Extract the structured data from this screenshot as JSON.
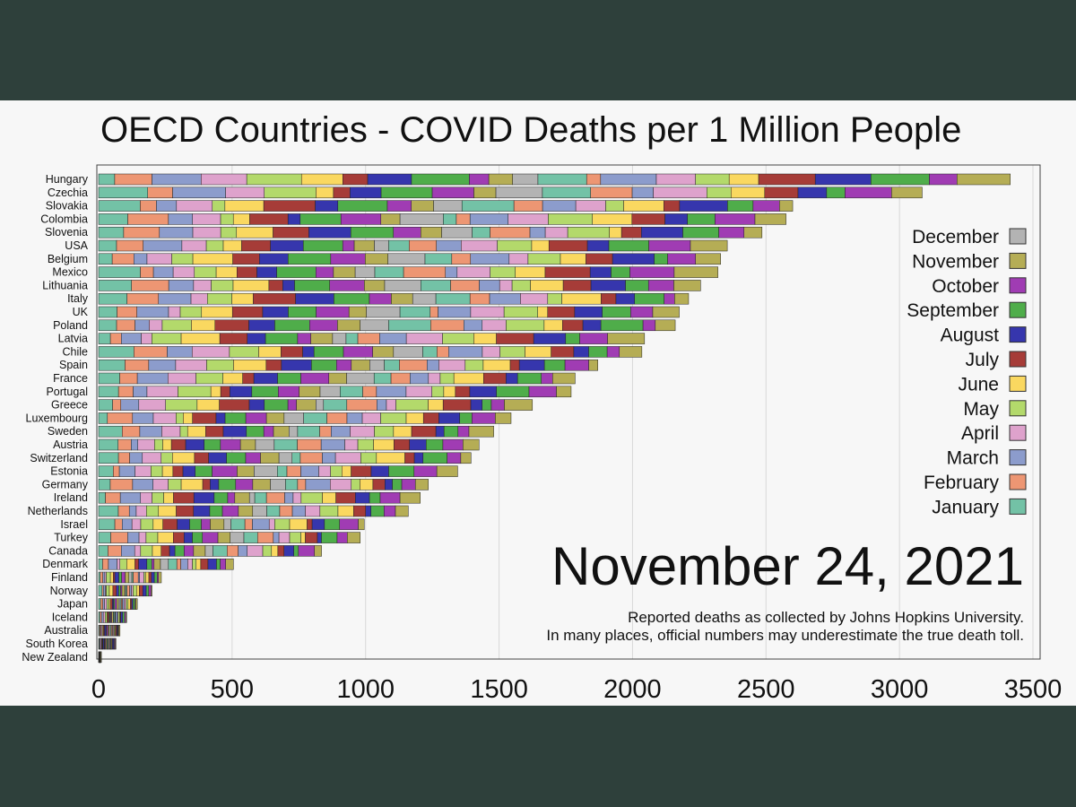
{
  "chart_data": {
    "type": "bar",
    "stacked": true,
    "orientation": "horizontal",
    "title": "OECD Countries - COVID Deaths per 1 Million People",
    "date_label": "November 24, 2021",
    "notes": [
      "Reported deaths as collected by Johns Hopkins University.",
      "In many places, official numbers may underestimate the true death toll."
    ],
    "xlim": [
      0,
      3500
    ],
    "xticks": [
      0,
      500,
      1000,
      1500,
      2000,
      2500,
      3000,
      3500
    ],
    "grid": true,
    "legend_position": "right",
    "legend": [
      {
        "name": "December",
        "color": "#b3b3b3"
      },
      {
        "name": "November",
        "color": "#b5ad55"
      },
      {
        "name": "October",
        "color": "#a03cb3"
      },
      {
        "name": "September",
        "color": "#4fad4a"
      },
      {
        "name": "August",
        "color": "#3636ad"
      },
      {
        "name": "July",
        "color": "#a63c38"
      },
      {
        "name": "June",
        "color": "#fad860"
      },
      {
        "name": "May",
        "color": "#b3d96b"
      },
      {
        "name": "April",
        "color": "#dea2cc"
      },
      {
        "name": "March",
        "color": "#8c9ccc"
      },
      {
        "name": "February",
        "color": "#ed9673"
      },
      {
        "name": "January",
        "color": "#73c2a6"
      }
    ],
    "series": [
      {
        "country": "Hungary",
        "total": 3415
      },
      {
        "country": "Czechia",
        "total": 3085
      },
      {
        "country": "Slovakia",
        "total": 2600
      },
      {
        "country": "Colombia",
        "total": 2575
      },
      {
        "country": "Slovenia",
        "total": 2485
      },
      {
        "country": "USA",
        "total": 2355
      },
      {
        "country": "Belgium",
        "total": 2330
      },
      {
        "country": "Mexico",
        "total": 2320
      },
      {
        "country": "Lithuania",
        "total": 2255
      },
      {
        "country": "Italy",
        "total": 2210
      },
      {
        "country": "UK",
        "total": 2175
      },
      {
        "country": "Poland",
        "total": 2160
      },
      {
        "country": "Latvia",
        "total": 2045
      },
      {
        "country": "Chile",
        "total": 2035
      },
      {
        "country": "Spain",
        "total": 1870
      },
      {
        "country": "France",
        "total": 1785
      },
      {
        "country": "Portugal",
        "total": 1770
      },
      {
        "country": "Greece",
        "total": 1625
      },
      {
        "country": "Luxembourg",
        "total": 1545
      },
      {
        "country": "Sweden",
        "total": 1480
      },
      {
        "country": "Austria",
        "total": 1425
      },
      {
        "country": "Switzerland",
        "total": 1395
      },
      {
        "country": "Estonia",
        "total": 1345
      },
      {
        "country": "Germany",
        "total": 1235
      },
      {
        "country": "Ireland",
        "total": 1205
      },
      {
        "country": "Netherlands",
        "total": 1160
      },
      {
        "country": "Israel",
        "total": 995
      },
      {
        "country": "Turkey",
        "total": 980
      },
      {
        "country": "Canada",
        "total": 835
      },
      {
        "country": "Denmark",
        "total": 505
      },
      {
        "country": "Finland",
        "total": 235
      },
      {
        "country": "Norway",
        "total": 200
      },
      {
        "country": "Japan",
        "total": 145
      },
      {
        "country": "Iceland",
        "total": 105
      },
      {
        "country": "Australia",
        "total": 80
      },
      {
        "country": "South Korea",
        "total": 65
      },
      {
        "country": "New Zealand",
        "total": 8
      }
    ],
    "xlabel": "",
    "ylabel": ""
  }
}
